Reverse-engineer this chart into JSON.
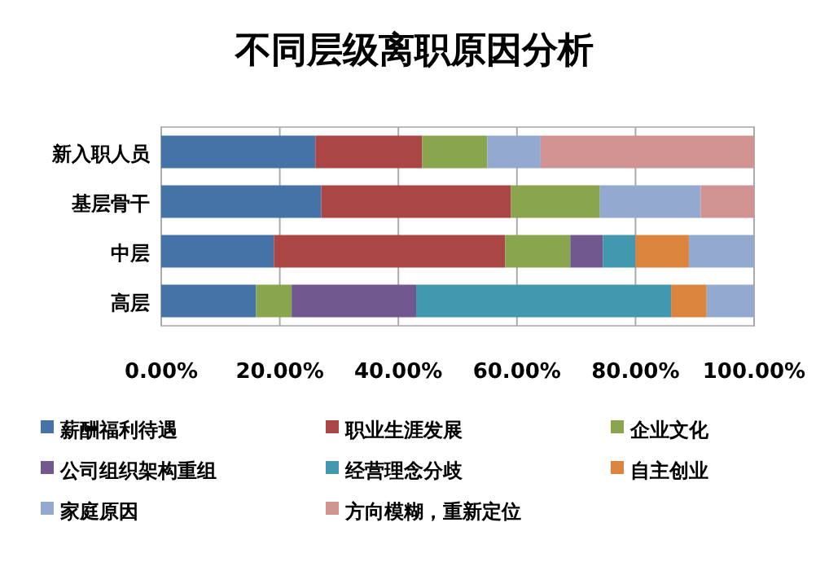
{
  "chart_data": {
    "type": "bar",
    "orientation": "horizontal",
    "stacked": true,
    "title": "不同层级离职原因分析",
    "categories": [
      "新入职人员",
      "基层骨干",
      "中层",
      "高层"
    ],
    "series": [
      {
        "name": "薪酬福利待遇",
        "color": "#4572a7",
        "values": [
          26,
          27,
          19,
          16
        ]
      },
      {
        "name": "职业生涯发展",
        "color": "#aa4643",
        "values": [
          18,
          32,
          39,
          null
        ]
      },
      {
        "name": "企业文化",
        "color": "#89a54e",
        "values": [
          11,
          15,
          11,
          6
        ]
      },
      {
        "name": "公司组织架构重组",
        "color": "#71588f",
        "values": [
          null,
          null,
          5.5,
          21
        ]
      },
      {
        "name": "经营理念分歧",
        "color": "#4198af",
        "values": [
          null,
          null,
          5.5,
          43
        ]
      },
      {
        "name": "自主创业",
        "color": "#db843d",
        "values": [
          null,
          null,
          9,
          6
        ]
      },
      {
        "name": "家庭原因",
        "color": "#93a9cf",
        "values": [
          9,
          17,
          11,
          8
        ]
      },
      {
        "name": "方向模糊，重新定位",
        "color": "#d19392",
        "values": [
          36,
          9,
          null,
          null
        ]
      }
    ],
    "xlim": [
      0,
      100
    ],
    "xticks": [
      {
        "value": 0,
        "label": "0.00%"
      },
      {
        "value": 20,
        "label": "20.00%"
      },
      {
        "value": 40,
        "label": "40.00%"
      },
      {
        "value": 60,
        "label": "60.00%"
      },
      {
        "value": 80,
        "label": "80.00%"
      },
      {
        "value": 100,
        "label": "100.00%"
      }
    ],
    "grid": "x",
    "legend": "bottom"
  }
}
